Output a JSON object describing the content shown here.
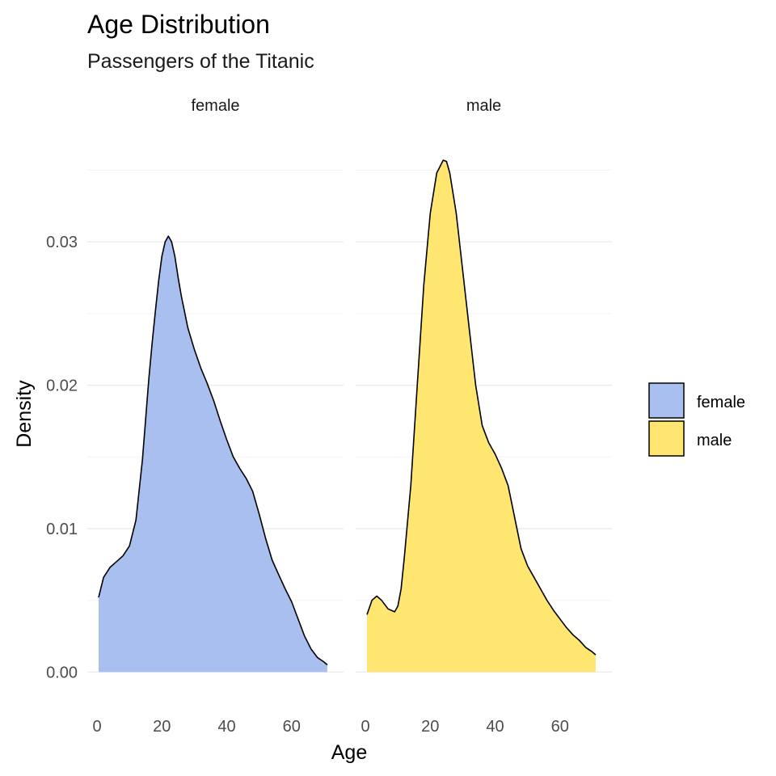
{
  "chart_data": {
    "type": "area",
    "title": "Age Distribution",
    "subtitle": "Passengers of the Titanic",
    "xlabel": "Age",
    "ylabel": "Density",
    "xlim": [
      -3,
      76
    ],
    "ylim": [
      -0.0015,
      0.037
    ],
    "x_ticks": [
      0,
      20,
      40,
      60
    ],
    "y_ticks": [
      0.0,
      0.01,
      0.02,
      0.03
    ],
    "y_tick_labels": [
      "0.00",
      "0.01",
      "0.02",
      "0.03"
    ],
    "grid": true,
    "legend_position": "right",
    "facets": [
      {
        "label": "female",
        "color": "#a9bfef",
        "x": [
          0.5,
          2,
          4,
          6,
          8,
          10,
          12,
          14,
          16,
          17,
          18,
          19,
          20,
          21,
          22,
          23,
          24,
          25,
          26,
          28,
          30,
          32,
          34,
          36,
          38,
          40,
          42,
          44,
          46,
          48,
          50,
          52,
          54,
          56,
          58,
          60,
          62,
          64,
          66,
          68,
          70,
          71
        ],
        "density": [
          0.0052,
          0.0066,
          0.0073,
          0.0077,
          0.0081,
          0.0088,
          0.0106,
          0.0148,
          0.0205,
          0.023,
          0.0252,
          0.0273,
          0.029,
          0.03,
          0.0304,
          0.03,
          0.029,
          0.0275,
          0.0262,
          0.024,
          0.0225,
          0.0212,
          0.0201,
          0.0189,
          0.0175,
          0.0162,
          0.015,
          0.0142,
          0.0135,
          0.0126,
          0.011,
          0.0093,
          0.0078,
          0.0068,
          0.0058,
          0.0049,
          0.0037,
          0.0025,
          0.0016,
          0.001,
          0.0007,
          0.0005
        ]
      },
      {
        "label": "male",
        "color": "#fee671",
        "x": [
          0.5,
          2,
          3.5,
          5,
          7,
          9,
          10,
          11,
          12,
          14,
          16,
          18,
          20,
          22,
          24,
          25,
          26,
          28,
          30,
          32,
          34,
          36,
          38,
          40,
          42,
          44,
          46,
          48,
          50,
          52,
          54,
          56,
          58,
          60,
          62,
          64,
          66,
          68,
          70,
          71
        ],
        "density": [
          0.004,
          0.005,
          0.0053,
          0.005,
          0.0044,
          0.0042,
          0.0046,
          0.0058,
          0.008,
          0.013,
          0.02,
          0.027,
          0.032,
          0.0348,
          0.0357,
          0.0356,
          0.0348,
          0.032,
          0.028,
          0.024,
          0.02,
          0.0172,
          0.016,
          0.0152,
          0.0142,
          0.013,
          0.0108,
          0.0086,
          0.0074,
          0.0066,
          0.0058,
          0.005,
          0.0043,
          0.0037,
          0.0031,
          0.0026,
          0.0022,
          0.0017,
          0.0014,
          0.0012
        ]
      }
    ],
    "legend": [
      {
        "label": "female",
        "color": "#a9bfef"
      },
      {
        "label": "male",
        "color": "#fee671"
      }
    ]
  }
}
